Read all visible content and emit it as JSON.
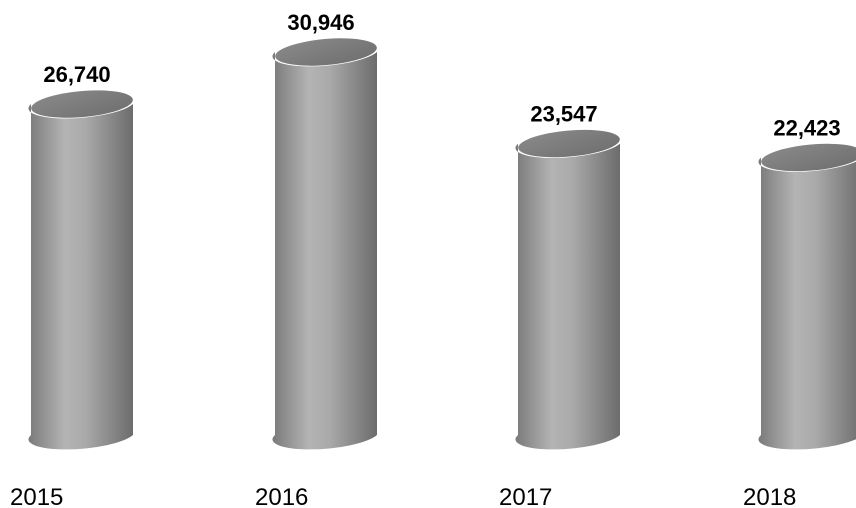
{
  "chart_data": {
    "type": "bar",
    "categories": [
      "2015",
      "2016",
      "2017",
      "2018"
    ],
    "values": [
      26740,
      30946,
      23547,
      22423
    ],
    "value_labels": [
      "26,740",
      "30,946",
      "23,547",
      "22,423"
    ],
    "title": "",
    "xlabel": "",
    "ylabel": "",
    "ylim": [
      0,
      31000
    ],
    "grid": false,
    "legend": "none",
    "bar_shape": "cylinder",
    "bar_color": "#9a9a9a"
  }
}
